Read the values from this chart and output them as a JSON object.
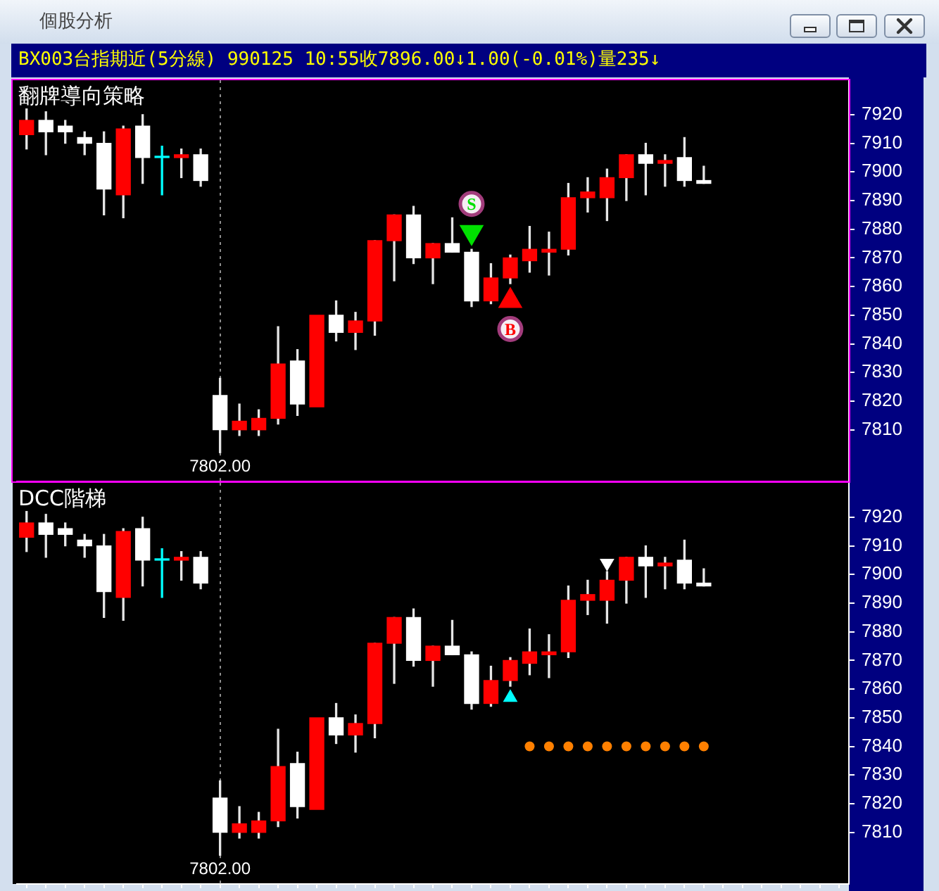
{
  "chart_data": [
    {
      "type": "candlestick",
      "title": "翻牌導向策略",
      "categories": [
        null,
        null,
        null,
        null,
        null,
        null,
        null,
        null,
        null,
        null,
        null,
        null,
        null,
        null,
        null,
        null,
        null,
        null,
        null,
        null,
        null,
        null,
        null,
        null,
        null,
        null,
        null,
        null,
        null,
        null,
        null,
        null,
        null,
        null,
        null,
        null,
        null,
        null,
        null,
        null,
        null,
        null,
        null
      ],
      "ohlc": [
        [
          7913,
          7922,
          7908,
          7918
        ],
        [
          7918,
          7921,
          7906,
          7914
        ],
        [
          7916,
          7918,
          7910,
          7914
        ],
        [
          7912,
          7914,
          7906,
          7910
        ],
        [
          7910,
          7914,
          7885,
          7894
        ],
        [
          7892,
          7916,
          7884,
          7915
        ],
        [
          7916,
          7920,
          7896,
          7905
        ],
        [
          7905,
          7909,
          7892,
          7905
        ],
        [
          7905,
          7908,
          7898,
          7906
        ],
        [
          7906,
          7908,
          7895,
          7897
        ],
        [
          7822,
          7828,
          7802,
          7810
        ],
        [
          7810,
          7819,
          7808,
          7813
        ],
        [
          7810,
          7817,
          7808,
          7814
        ],
        [
          7814,
          7846,
          7812,
          7833
        ],
        [
          7834,
          7838,
          7815,
          7819
        ],
        [
          7818,
          7850,
          7818,
          7850
        ],
        [
          7850,
          7855,
          7841,
          7844
        ],
        [
          7844,
          7851,
          7838,
          7848
        ],
        [
          7848,
          7876,
          7843,
          7876
        ],
        [
          7876,
          7885,
          7862,
          7885
        ],
        [
          7885,
          7888,
          7868,
          7870
        ],
        [
          7870,
          7875,
          7861,
          7875
        ],
        [
          7875,
          7884,
          7872,
          7872
        ],
        [
          7872,
          7873,
          7853,
          7855
        ],
        [
          7855,
          7868,
          7854,
          7863
        ],
        [
          7863,
          7871,
          7861,
          7870
        ],
        [
          7869,
          7881,
          7865,
          7873
        ],
        [
          7872,
          7879,
          7864,
          7873
        ],
        [
          7873,
          7896,
          7871,
          7891
        ],
        [
          7891,
          7898,
          7886,
          7893
        ],
        [
          7891,
          7901,
          7883,
          7898
        ],
        [
          7898,
          7906,
          7890,
          7906
        ],
        [
          7906,
          7910,
          7892,
          7903
        ],
        [
          7903,
          7906,
          7895,
          7904
        ],
        [
          7905,
          7912,
          7895,
          7897
        ],
        [
          7897,
          7902,
          7896,
          7896
        ],
        null,
        null,
        null,
        null,
        null,
        null,
        null
      ],
      "colors": [
        "#ff0000",
        "#ffffff",
        "#ffffff",
        "#ffffff",
        "#ffffff",
        "#ff0000",
        "#ffffff",
        "#00ffff",
        "#ff0000",
        "#ffffff",
        "#ffffff",
        "#ff0000",
        "#ff0000",
        "#ff0000",
        "#ffffff",
        "#ff0000",
        "#ffffff",
        "#ff0000",
        "#ff0000",
        "#ff0000",
        "#ffffff",
        "#ff0000",
        "#ffffff",
        "#ffffff",
        "#ff0000",
        "#ff0000",
        "#ff0000",
        "#ff0000",
        "#ff0000",
        "#ff0000",
        "#ff0000",
        "#ff0000",
        "#ffffff",
        "#ff0000",
        "#ffffff",
        "#ffffff",
        null,
        null,
        null,
        null,
        null,
        null,
        null
      ],
      "series": [
        {
          "name": "S",
          "type": "scatter",
          "color": "#00e000",
          "marker": "triangle",
          "values": [
            null,
            null,
            null,
            null,
            null,
            null,
            null,
            null,
            null,
            null,
            null,
            null,
            null,
            null,
            null,
            null,
            null,
            null,
            null,
            null,
            null,
            null,
            null,
            7879,
            null,
            null,
            null,
            null,
            null,
            null,
            null,
            null,
            null,
            null,
            null,
            null,
            null,
            null,
            null,
            null,
            null,
            null,
            null
          ]
        },
        {
          "name": "B",
          "type": "scatter",
          "color": "#ff0000",
          "marker": "triangle",
          "values": [
            null,
            null,
            null,
            null,
            null,
            null,
            null,
            null,
            null,
            null,
            null,
            null,
            null,
            null,
            null,
            null,
            null,
            null,
            null,
            null,
            null,
            null,
            null,
            null,
            null,
            7855,
            null,
            null,
            null,
            null,
            null,
            null,
            null,
            null,
            null,
            null,
            null,
            null,
            null,
            null,
            null,
            null,
            null
          ]
        }
      ],
      "ylim": [
        7792,
        7932
      ],
      "yticks": [
        7810,
        7820,
        7830,
        7840,
        7850,
        7860,
        7870,
        7880,
        7890,
        7900,
        7910,
        7920
      ],
      "tick_labels": "y",
      "annotations": [
        "個股分析",
        "BX003台指期近(5分線) 990125 10:55收7896.00↓1.00(-0.01%)量235↓",
        "7802.00"
      ]
    },
    {
      "type": "candlestick",
      "title": "DCC階梯",
      "categories": [
        null,
        null,
        null,
        null,
        null,
        null,
        null,
        null,
        null,
        null,
        null,
        null,
        null,
        null,
        null,
        null,
        null,
        null,
        null,
        null,
        null,
        null,
        null,
        null,
        null,
        null,
        null,
        null,
        null,
        null,
        null,
        null,
        null,
        null,
        null,
        null,
        null,
        null,
        null,
        null,
        null,
        null,
        null
      ],
      "ohlc": [
        [
          7913,
          7922,
          7908,
          7918
        ],
        [
          7918,
          7921,
          7906,
          7914
        ],
        [
          7916,
          7918,
          7910,
          7914
        ],
        [
          7912,
          7914,
          7906,
          7910
        ],
        [
          7910,
          7914,
          7885,
          7894
        ],
        [
          7892,
          7916,
          7884,
          7915
        ],
        [
          7916,
          7920,
          7896,
          7905
        ],
        [
          7905,
          7909,
          7892,
          7905
        ],
        [
          7905,
          7908,
          7898,
          7906
        ],
        [
          7906,
          7908,
          7895,
          7897
        ],
        [
          7822,
          7828,
          7802,
          7810
        ],
        [
          7810,
          7819,
          7808,
          7813
        ],
        [
          7810,
          7817,
          7808,
          7814
        ],
        [
          7814,
          7846,
          7812,
          7833
        ],
        [
          7834,
          7838,
          7815,
          7819
        ],
        [
          7818,
          7850,
          7818,
          7850
        ],
        [
          7850,
          7855,
          7841,
          7844
        ],
        [
          7844,
          7851,
          7838,
          7848
        ],
        [
          7848,
          7876,
          7843,
          7876
        ],
        [
          7876,
          7885,
          7862,
          7885
        ],
        [
          7885,
          7888,
          7868,
          7870
        ],
        [
          7870,
          7875,
          7861,
          7875
        ],
        [
          7875,
          7884,
          7872,
          7872
        ],
        [
          7872,
          7873,
          7853,
          7855
        ],
        [
          7855,
          7868,
          7854,
          7863
        ],
        [
          7863,
          7871,
          7861,
          7870
        ],
        [
          7869,
          7881,
          7865,
          7873
        ],
        [
          7872,
          7879,
          7864,
          7873
        ],
        [
          7873,
          7896,
          7871,
          7891
        ],
        [
          7891,
          7898,
          7886,
          7893
        ],
        [
          7891,
          7901,
          7883,
          7898
        ],
        [
          7898,
          7906,
          7890,
          7906
        ],
        [
          7906,
          7910,
          7892,
          7903
        ],
        [
          7903,
          7906,
          7895,
          7904
        ],
        [
          7905,
          7912,
          7895,
          7897
        ],
        [
          7897,
          7902,
          7896,
          7896
        ],
        null,
        null,
        null,
        null,
        null,
        null,
        null
      ],
      "colors": [
        "#ff0000",
        "#ffffff",
        "#ffffff",
        "#ffffff",
        "#ffffff",
        "#ff0000",
        "#ffffff",
        "#00ffff",
        "#ff0000",
        "#ffffff",
        "#ffffff",
        "#ff0000",
        "#ff0000",
        "#ff0000",
        "#ffffff",
        "#ff0000",
        "#ffffff",
        "#ff0000",
        "#ff0000",
        "#ff0000",
        "#ffffff",
        "#ff0000",
        "#ffffff",
        "#ffffff",
        "#ff0000",
        "#ff0000",
        "#ff0000",
        "#ff0000",
        "#ff0000",
        "#ff0000",
        "#ff0000",
        "#ff0000",
        "#ffffff",
        "#ff0000",
        "#ffffff",
        "#ffffff",
        null,
        null,
        null,
        null,
        null,
        null,
        null
      ],
      "series": [
        {
          "type": "scatter",
          "color": "#00ffff",
          "marker": "triangle",
          "values": [
            null,
            null,
            null,
            null,
            null,
            null,
            null,
            null,
            null,
            null,
            null,
            null,
            null,
            null,
            null,
            null,
            null,
            null,
            null,
            null,
            null,
            null,
            null,
            null,
            null,
            7857,
            null,
            null,
            null,
            null,
            null,
            null,
            null,
            null,
            null,
            null,
            null,
            null,
            null,
            null,
            null,
            null,
            null
          ]
        },
        {
          "type": "scatter",
          "color": "#ffffff",
          "marker": "triangle",
          "values": [
            null,
            null,
            null,
            null,
            null,
            null,
            null,
            null,
            null,
            null,
            null,
            null,
            null,
            null,
            null,
            null,
            null,
            null,
            null,
            null,
            null,
            null,
            null,
            null,
            null,
            null,
            null,
            null,
            null,
            null,
            7904,
            null,
            null,
            null,
            null,
            null,
            null,
            null,
            null,
            null,
            null,
            null,
            null
          ]
        },
        {
          "type": "scatter",
          "color": "#ff8000",
          "marker": "circle",
          "values": [
            null,
            null,
            null,
            null,
            null,
            null,
            null,
            null,
            null,
            null,
            null,
            null,
            null,
            null,
            null,
            null,
            null,
            null,
            null,
            null,
            null,
            null,
            null,
            null,
            null,
            null,
            7840,
            7840,
            7840,
            7840,
            7840,
            7840,
            7840,
            7840,
            7840,
            7840,
            null,
            null,
            null,
            null,
            null,
            null,
            null
          ]
        }
      ],
      "ylim": [
        7792,
        7932
      ],
      "yticks": [
        7810,
        7820,
        7830,
        7840,
        7850,
        7860,
        7870,
        7880,
        7890,
        7900,
        7910,
        7920
      ],
      "tick_labels": "y",
      "annotations": [
        "7802.00"
      ]
    }
  ]
}
